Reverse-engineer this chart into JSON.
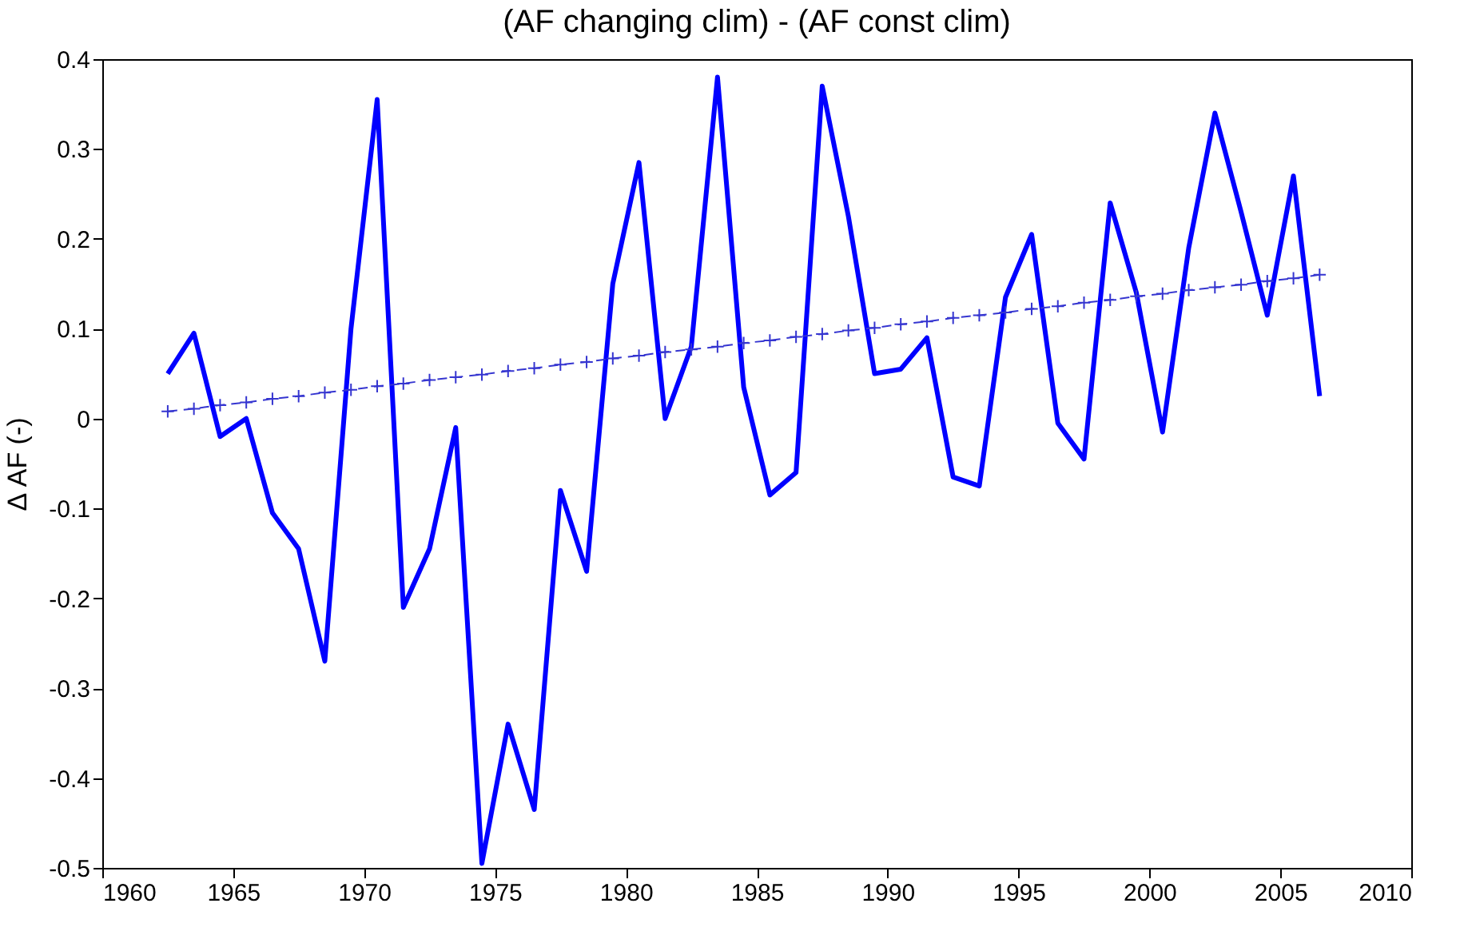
{
  "chart_data": {
    "type": "line",
    "title": "(AF changing clim) - (AF const clim)",
    "ylabel": "Δ AF (-)",
    "x": [
      1962.5,
      1963.5,
      1964.5,
      1965.5,
      1966.5,
      1967.5,
      1968.5,
      1969.5,
      1970.5,
      1971.5,
      1972.5,
      1973.5,
      1974.5,
      1975.5,
      1976.5,
      1977.5,
      1978.5,
      1979.5,
      1980.5,
      1981.5,
      1982.5,
      1983.5,
      1984.5,
      1985.5,
      1986.5,
      1987.5,
      1988.5,
      1989.5,
      1990.5,
      1991.5,
      1992.5,
      1993.5,
      1994.5,
      1995.5,
      1996.5,
      1997.5,
      1998.5,
      1999.5,
      2000.5,
      2001.5,
      2002.5,
      2003.5,
      2004.5,
      2005.5,
      2006.5
    ],
    "series": [
      {
        "color": "#0000ff",
        "marker": "none",
        "line_style": "solid",
        "values": [
          0.05,
          0.095,
          -0.02,
          0.0,
          -0.105,
          -0.145,
          -0.27,
          0.1,
          0.355,
          -0.21,
          -0.145,
          -0.01,
          -0.495,
          -0.34,
          -0.435,
          -0.08,
          -0.17,
          0.15,
          0.285,
          0.0,
          0.08,
          0.38,
          0.035,
          -0.085,
          -0.06,
          0.37,
          0.225,
          0.05,
          0.055,
          0.09,
          -0.065,
          -0.075,
          0.135,
          0.205,
          -0.005,
          -0.045,
          0.24,
          0.14,
          -0.015,
          0.19,
          0.34,
          0.23,
          0.115,
          0.27,
          0.025
        ]
      },
      {
        "color": "#3535d0",
        "marker": "cross",
        "line_style": "dashed",
        "values": [
          0.008,
          0.011,
          0.015,
          0.018,
          0.022,
          0.025,
          0.029,
          0.032,
          0.036,
          0.039,
          0.043,
          0.046,
          0.049,
          0.053,
          0.056,
          0.06,
          0.063,
          0.067,
          0.07,
          0.074,
          0.077,
          0.08,
          0.084,
          0.087,
          0.091,
          0.094,
          0.098,
          0.101,
          0.105,
          0.108,
          0.112,
          0.115,
          0.118,
          0.122,
          0.125,
          0.129,
          0.132,
          0.136,
          0.139,
          0.143,
          0.146,
          0.149,
          0.153,
          0.156,
          0.16
        ]
      }
    ],
    "xlim": [
      1960,
      2010
    ],
    "xticks": [
      1960,
      1965,
      1970,
      1975,
      1980,
      1985,
      1990,
      1995,
      2000,
      2005,
      2010
    ],
    "ylim": [
      -0.5,
      0.4
    ],
    "yticks": [
      -0.5,
      -0.4,
      -0.3,
      -0.2,
      -0.1,
      0,
      0.1,
      0.2,
      0.3,
      0.4
    ],
    "grid": false
  }
}
